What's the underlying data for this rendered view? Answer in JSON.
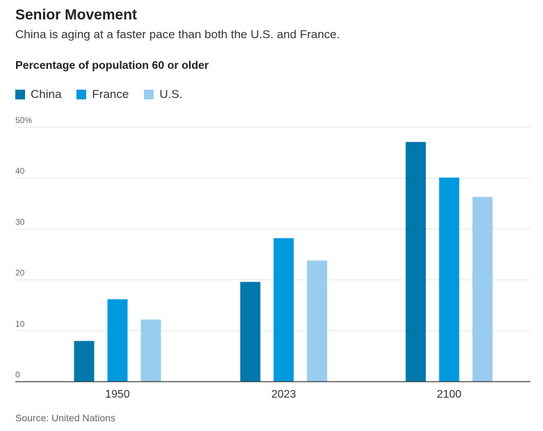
{
  "header": {
    "title": "Senior Movement",
    "subtitle": "China is aging at a faster pace than both the U.S. and France."
  },
  "source": "Source: United Nations",
  "chart_data": {
    "type": "bar",
    "title": "Percentage of population 60 or older",
    "xlabel": "",
    "ylabel": "",
    "categories": [
      "1950",
      "2023",
      "2100"
    ],
    "series": [
      {
        "name": "China",
        "values": [
          8.0,
          19.6,
          47.1
        ],
        "color": "#0077aa"
      },
      {
        "name": "France",
        "values": [
          16.2,
          28.2,
          40.1
        ],
        "color": "#0099dd"
      },
      {
        "name": "U.S.",
        "values": [
          12.2,
          23.8,
          36.3
        ],
        "color": "#99ccee"
      }
    ],
    "ylim": [
      0,
      50
    ],
    "y_ticks": [
      "0",
      "10",
      "20",
      "30",
      "40",
      "50%"
    ],
    "grid": true,
    "legend": "top-left"
  }
}
